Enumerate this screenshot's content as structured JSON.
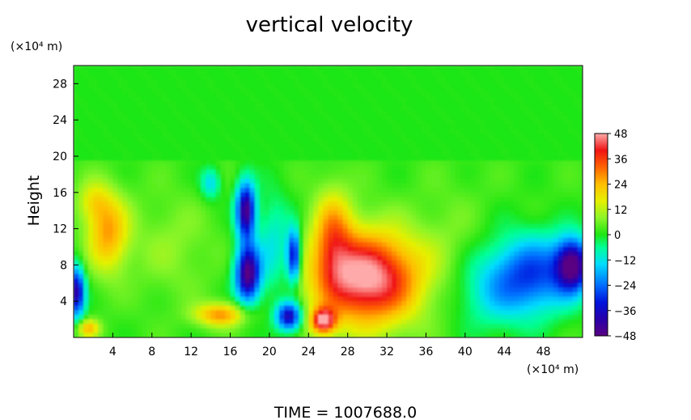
{
  "chart_data": {
    "type": "heatmap",
    "title": "vertical velocity",
    "ylabel": "Height",
    "y_unit_label": "(×10⁴ m)",
    "x_unit_label": "(×10⁴ m)",
    "footer": "TIME  =  1007688.0",
    "xlim": [
      0,
      52
    ],
    "ylim": [
      0,
      30
    ],
    "x_ticks": [
      4,
      8,
      12,
      16,
      20,
      24,
      28,
      32,
      36,
      40,
      44,
      48
    ],
    "y_ticks": [
      4,
      8,
      12,
      16,
      20,
      24,
      28
    ],
    "colorbar": {
      "range": [
        -48,
        48
      ],
      "ticks": [
        48,
        36,
        24,
        12,
        0,
        -12,
        -24,
        -36,
        -48
      ],
      "tick_labels": [
        "48",
        "36",
        "24",
        "12",
        "0",
        "−12",
        "−24",
        "−36",
        "−48"
      ]
    },
    "features": [
      {
        "x": 30.0,
        "y": 6.5,
        "sx": 3.8,
        "sy": 3.6,
        "v": 48
      },
      {
        "x": 25.5,
        "y": 1.8,
        "sx": 0.9,
        "sy": 1.0,
        "v": 40
      },
      {
        "x": 26.5,
        "y": 11.5,
        "sx": 1.4,
        "sy": 3.5,
        "v": 22
      },
      {
        "x": 17.8,
        "y": 7.0,
        "sx": 0.9,
        "sy": 2.2,
        "v": -50
      },
      {
        "x": 17.6,
        "y": 14.0,
        "sx": 0.7,
        "sy": 2.2,
        "v": -48
      },
      {
        "x": 22.5,
        "y": 9.0,
        "sx": 0.5,
        "sy": 2.0,
        "v": -40
      },
      {
        "x": 22.0,
        "y": 2.3,
        "sx": 0.9,
        "sy": 1.1,
        "v": -42
      },
      {
        "x": 0.3,
        "y": 5.0,
        "sx": 0.6,
        "sy": 2.0,
        "v": -42
      },
      {
        "x": 51.0,
        "y": 8.0,
        "sx": 1.2,
        "sy": 2.0,
        "v": -46
      },
      {
        "x": 47.0,
        "y": 7.0,
        "sx": 3.0,
        "sy": 3.0,
        "v": -28
      },
      {
        "x": 42.5,
        "y": 5.0,
        "sx": 3.0,
        "sy": 3.0,
        "v": -12
      },
      {
        "x": 3.5,
        "y": 11.5,
        "sx": 1.5,
        "sy": 3.0,
        "v": 24
      },
      {
        "x": 2.0,
        "y": 15.0,
        "sx": 1.2,
        "sy": 1.6,
        "v": 12
      },
      {
        "x": 15.0,
        "y": 2.5,
        "sx": 1.8,
        "sy": 0.9,
        "v": 26
      },
      {
        "x": 1.5,
        "y": 1.0,
        "sx": 0.8,
        "sy": 0.7,
        "v": 22
      },
      {
        "x": 14.0,
        "y": 17.0,
        "sx": 0.7,
        "sy": 1.2,
        "v": -16
      },
      {
        "x": 20.5,
        "y": 10.0,
        "sx": 1.2,
        "sy": 4.0,
        "v": -14
      },
      {
        "x": 10.0,
        "y": 10.0,
        "sx": 3.0,
        "sy": 4.0,
        "v": 6
      },
      {
        "x": 38.5,
        "y": 10.0,
        "sx": 2.5,
        "sy": 5.0,
        "v": 4
      }
    ]
  }
}
